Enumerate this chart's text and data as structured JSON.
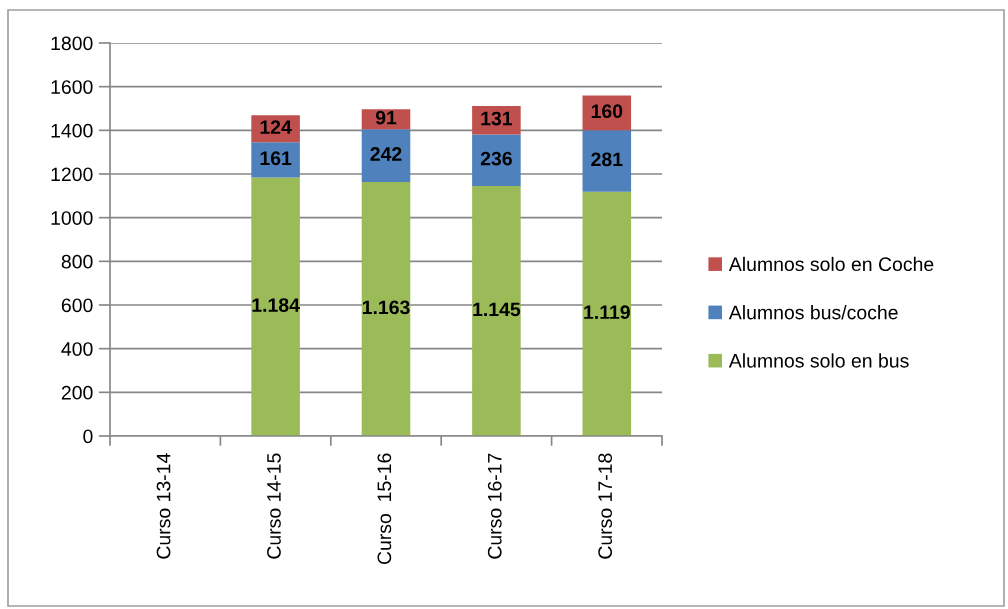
{
  "chart_data": {
    "type": "bar",
    "stacked": true,
    "categories": [
      "Curso 13-14",
      "Curso 14-15",
      "Curso  15-16",
      "Curso 16-17",
      "Curso 17-18"
    ],
    "series": [
      {
        "name": "Alumnos solo en bus",
        "color": "#9bbb59",
        "values": [
          null,
          1184,
          1163,
          1145,
          1119
        ],
        "value_labels": [
          null,
          "1.184",
          "1.163",
          "1.145",
          "1.119"
        ]
      },
      {
        "name": "Alumnos bus/coche",
        "color": "#4f81bd",
        "values": [
          null,
          161,
          242,
          236,
          281
        ],
        "value_labels": [
          null,
          "161",
          "242",
          "236",
          "281"
        ]
      },
      {
        "name": "Alumnos solo en Coche",
        "color": "#c0504d",
        "values": [
          null,
          124,
          91,
          131,
          160
        ],
        "value_labels": [
          null,
          "124",
          "91",
          "131",
          "160"
        ]
      }
    ],
    "ylim": [
      0,
      1800
    ],
    "yticks": [
      0,
      200,
      400,
      600,
      800,
      1000,
      1200,
      1400,
      1600,
      1800
    ],
    "grid": "y",
    "legend": "right"
  }
}
